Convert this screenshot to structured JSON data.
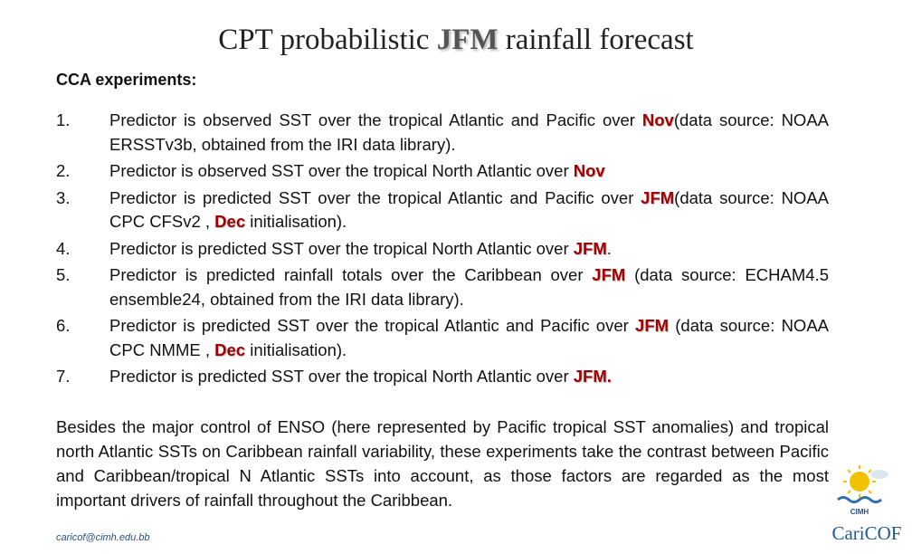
{
  "title": {
    "before": "CPT probabilistic ",
    "emphasis": "JFM",
    "after": " rainfall forecast"
  },
  "subtitle": "CCA experiments:",
  "items": [
    {
      "number": "1.",
      "runs": [
        {
          "text": "Predictor is observed SST over the tropical Atlantic and Pacific over "
        },
        {
          "text": "Nov",
          "emphasis": true
        },
        {
          "text": "(data source: NOAA ERSSTv3b, obtained from the IRI data library)."
        }
      ]
    },
    {
      "number": "2.",
      "runs": [
        {
          "text": "Predictor is observed SST over the tropical North Atlantic over "
        },
        {
          "text": "Nov",
          "emphasis": true
        }
      ]
    },
    {
      "number": "3.",
      "runs": [
        {
          "text": "Predictor is predicted SST over the tropical Atlantic and Pacific over "
        },
        {
          "text": "JFM",
          "emphasis": true
        },
        {
          "text": "(data source: NOAA CPC CFSv2 , "
        },
        {
          "text": "Dec",
          "emphasis": true
        },
        {
          "text": " initialisation)."
        }
      ]
    },
    {
      "number": "4.",
      "runs": [
        {
          "text": "Predictor is predicted SST over the tropical North Atlantic over "
        },
        {
          "text": "JFM",
          "emphasis": true
        },
        {
          "text": "."
        }
      ]
    },
    {
      "number": "5.",
      "runs": [
        {
          "text": "Predictor is predicted rainfall totals over the Caribbean over "
        },
        {
          "text": "JFM",
          "emphasis": true
        },
        {
          "text": " (data source: ECHAM4.5 ensemble24, obtained from the IRI data library)."
        }
      ]
    },
    {
      "number": "6.",
      "runs": [
        {
          "text": "Predictor is predicted SST over the tropical Atlantic and Pacific over "
        },
        {
          "text": "JFM",
          "emphasis": true
        },
        {
          "text": " (data source: NOAA CPC NMME , "
        },
        {
          "text": "Dec",
          "emphasis": true
        },
        {
          "text": " initialisation)."
        }
      ]
    },
    {
      "number": "7.",
      "runs": [
        {
          "text": "Predictor is predicted SST over the tropical North Atlantic over "
        },
        {
          "text": "JFM.",
          "emphasis": true
        }
      ]
    }
  ],
  "paragraph": "Besides the major control of ENSO (here represented by Pacific tropical SST anomalies) and tropical north Atlantic SSTs on Caribbean rainfall variability, these experiments take the contrast between Pacific and Caribbean/tropical N Atlantic SSTs into account, as those factors are regarded as the most important drivers of rainfall throughout the Caribbean.",
  "footer": {
    "email": "caricof@cimh.edu.bb",
    "logo_top": "CIMH",
    "logo_bottom": "CariCOF"
  }
}
